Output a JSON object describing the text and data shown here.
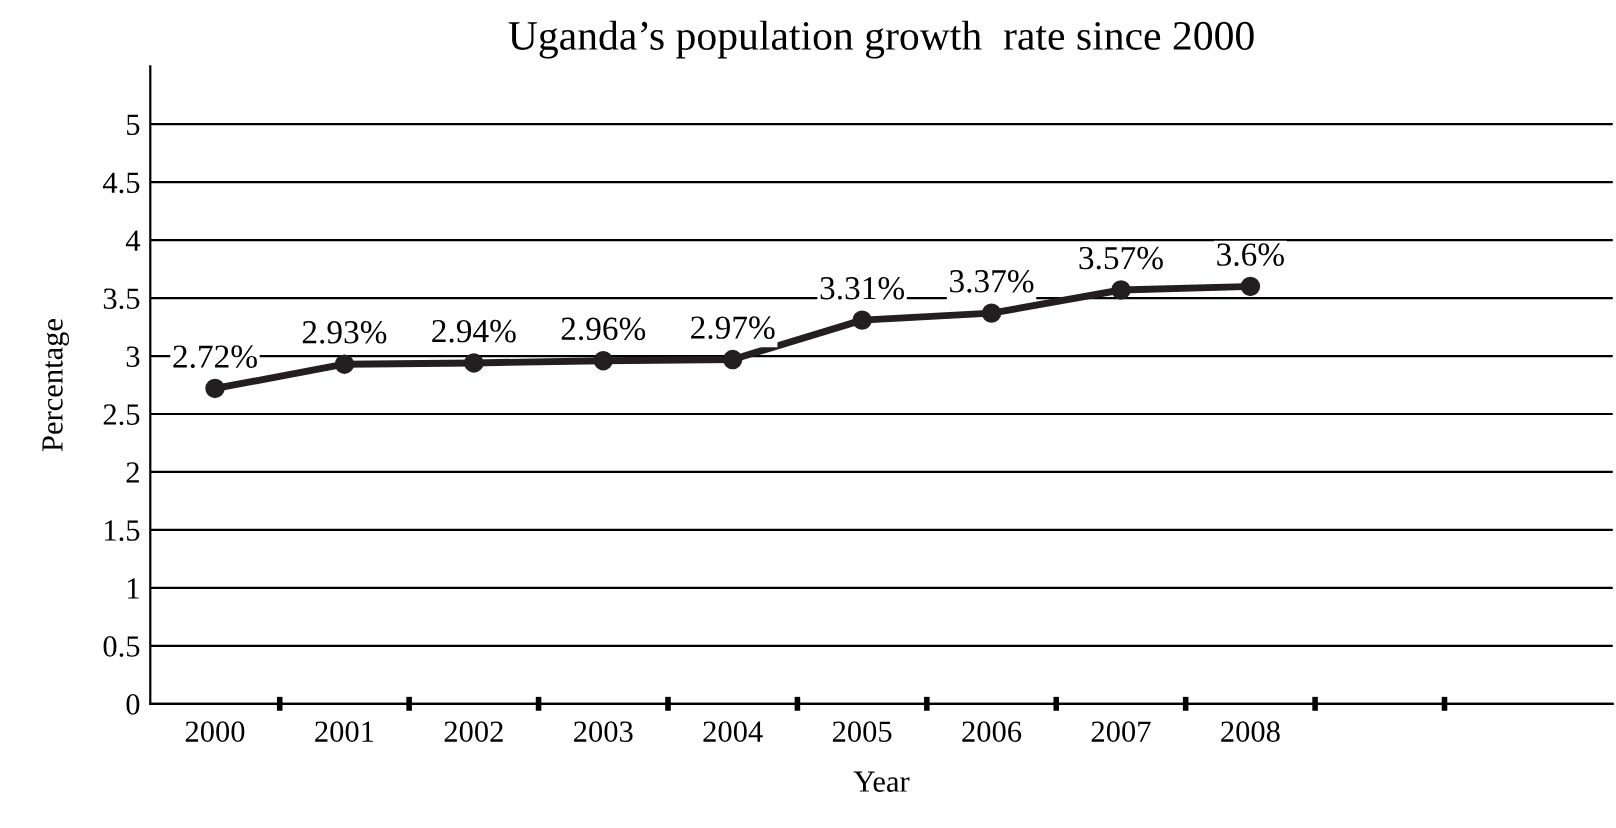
{
  "chart_data": {
    "type": "line",
    "title": "Uganda’s population growth  rate since 2000",
    "xlabel": "Year",
    "ylabel": "Percentage",
    "categories": [
      "2000",
      "2001",
      "2002",
      "2003",
      "2004",
      "2005",
      "2006",
      "2007",
      "2008"
    ],
    "series": [
      {
        "color": "#231f20",
        "values": [
          2.72,
          2.93,
          2.94,
          2.96,
          2.97,
          3.31,
          3.37,
          3.57,
          3.6
        ],
        "value_labels": [
          "2.72%",
          "2.93%",
          "2.94%",
          "2.96%",
          "2.97%",
          "3.31%",
          "3.37%",
          "3.57%",
          "3.6%"
        ]
      }
    ],
    "ylim": [
      0,
      5.5
    ],
    "yticks": [
      0,
      0.5,
      1,
      1.5,
      2,
      2.5,
      3,
      3.5,
      4,
      4.5,
      5
    ],
    "grid": "y",
    "marker": "circle",
    "line_style": "solid",
    "legend": false
  }
}
